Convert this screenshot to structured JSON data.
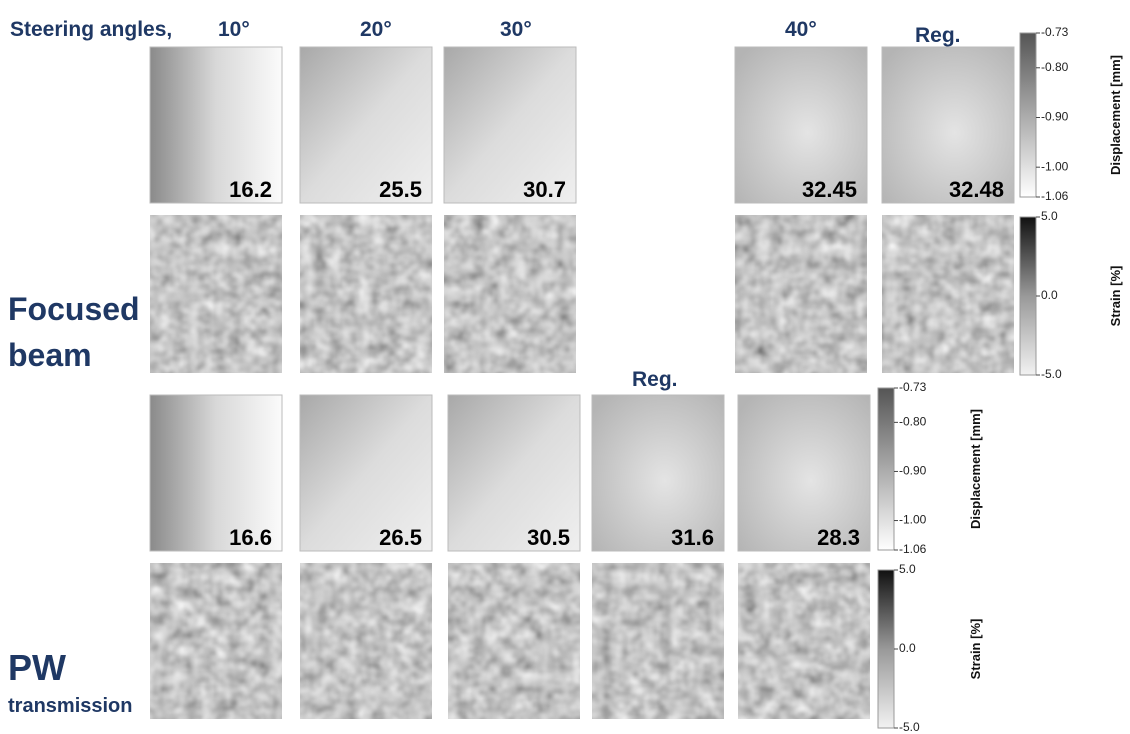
{
  "header": {
    "title": "Steering angles,",
    "angles": [
      "10°",
      "20°",
      "30°",
      "40°"
    ],
    "reg": "Reg."
  },
  "focused_beam": {
    "label": [
      "Focused",
      "beam"
    ],
    "displacement_values": [
      "16.2",
      "25.5",
      "30.7",
      "32.45",
      "32.48"
    ],
    "displacement_colorbar": {
      "label": "Displacement [mm]",
      "ticks": [
        "-0.73",
        "-0.80",
        "-0.90",
        "-1.00",
        "-1.06"
      ]
    },
    "strain_colorbar": {
      "label": "Strain [%]",
      "ticks": [
        "5.0",
        "0.0",
        "-5.0"
      ]
    }
  },
  "pw_transmission": {
    "label": [
      "PW",
      "transmission"
    ],
    "reg": "Reg.",
    "displacement_values": [
      "16.6",
      "26.5",
      "30.5",
      "31.6",
      "28.3"
    ],
    "displacement_colorbar": {
      "label": "Displacement [mm]",
      "ticks": [
        "-0.73",
        "-0.80",
        "-0.90",
        "-1.00",
        "-1.06"
      ]
    },
    "strain_colorbar": {
      "label": "Strain [%]",
      "ticks": [
        "5.0",
        "0.0",
        "-5.0"
      ]
    }
  }
}
